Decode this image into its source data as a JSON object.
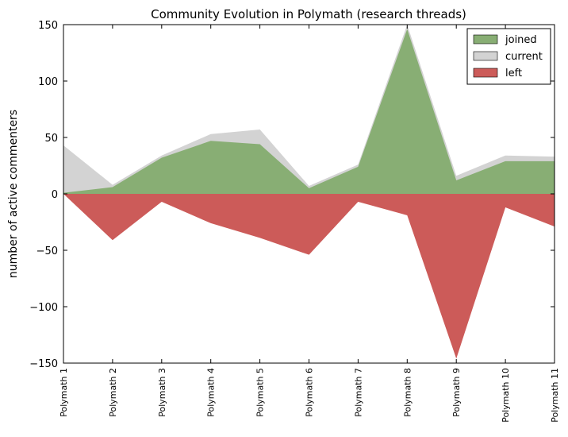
{
  "chart_data": {
    "type": "area",
    "title": "Community Evolution in Polymath (research threads)",
    "xlabel": "",
    "ylabel": "number of active commenters",
    "categories": [
      "Polymath 1",
      "Polymath 2",
      "Polymath 3",
      "Polymath 4",
      "Polymath 5",
      "Polymath 6",
      "Polymath 7",
      "Polymath 8",
      "Polymath 9",
      "Polymath 10",
      "Polymath 11"
    ],
    "ylim": [
      -150,
      150
    ],
    "yticks": [
      -150,
      -100,
      -50,
      0,
      50,
      100,
      150
    ],
    "ytick_labels": [
      "−150",
      "−100",
      "−50",
      "0",
      "50",
      "100",
      "150"
    ],
    "grid": false,
    "legend_position": "top-right",
    "series": [
      {
        "name": "joined",
        "color": "#88ae74",
        "values": [
          1,
          6,
          32,
          47,
          44,
          5,
          24,
          146,
          12,
          29,
          29
        ]
      },
      {
        "name": "current",
        "color": "#d3d3d3",
        "values": [
          43,
          8,
          34,
          53,
          57,
          7,
          26,
          150,
          16,
          34,
          33
        ]
      },
      {
        "name": "left",
        "color": "#cc5b59",
        "values": [
          0,
          -41,
          -7,
          -26,
          -39,
          -54,
          -7,
          -19,
          -146,
          -12,
          -29
        ]
      }
    ]
  }
}
